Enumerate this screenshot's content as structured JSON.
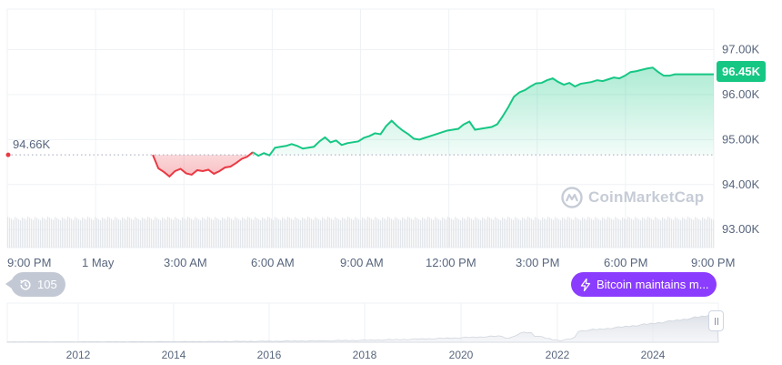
{
  "chart_data": [
    {
      "type": "line",
      "name": "main-price-chart",
      "x_ticks": [
        "9:00 PM",
        "1 May",
        "3:00 AM",
        "6:00 AM",
        "9:00 AM",
        "12:00 PM",
        "3:00 PM",
        "6:00 PM",
        "9:00 PM"
      ],
      "y_ticks": [
        "97.00K",
        "96.00K",
        "95.00K",
        "94.00K",
        "93.00K"
      ],
      "ylim": [
        92.6,
        97.9
      ],
      "open_price": 94.66,
      "open_label": "94.66K",
      "current_price_label": "96.45K",
      "colors": {
        "up": "#16c784",
        "down": "#ea3943",
        "reference": "#a1a7bb"
      },
      "x_hours_from_start": [
        0.0,
        0.2,
        0.4,
        0.6,
        0.8,
        1.0,
        1.2,
        1.4,
        1.6,
        1.8,
        2.0,
        2.2,
        2.4,
        2.6,
        2.8,
        3.0,
        3.2,
        3.4,
        3.6,
        3.8,
        4.0,
        4.2,
        4.4,
        4.6,
        4.8,
        5.0,
        5.2,
        5.4,
        5.6,
        5.8,
        6.0,
        6.2,
        6.4,
        6.6,
        6.8,
        7.0,
        7.2,
        7.4,
        7.6,
        7.8,
        8.0,
        8.2,
        8.4,
        8.6,
        8.8,
        9.0,
        9.2,
        9.4,
        9.6,
        9.8,
        10.0,
        10.2,
        10.4,
        10.6,
        10.8,
        11.0,
        11.2,
        11.4,
        11.6,
        11.8,
        12.0,
        12.2,
        12.4,
        12.6,
        12.8,
        13.0,
        13.2,
        13.4,
        13.6,
        13.8,
        14.0,
        14.2,
        14.4,
        14.6,
        14.8,
        15.0,
        15.2,
        15.4,
        15.6,
        15.8,
        16.0,
        16.2,
        16.4,
        16.6,
        16.8,
        17.0,
        17.2,
        17.4,
        17.6,
        17.8,
        18.0,
        18.2,
        18.4,
        18.6,
        18.8,
        19.0,
        19.2,
        19.4,
        19.6,
        19.8,
        20.0,
        20.2,
        20.4,
        20.6,
        20.8,
        21.0,
        21.2,
        21.4,
        21.6,
        21.8,
        22.0,
        22.2,
        22.4,
        22.6,
        22.8,
        23.0,
        23.2,
        23.4,
        23.6,
        23.8,
        24.0
      ],
      "y_values": [
        94.66,
        94.66,
        94.66,
        94.66,
        94.66,
        94.66,
        94.66,
        94.66,
        94.66,
        94.66,
        94.66,
        94.66,
        94.66,
        94.66,
        94.66,
        94.66,
        94.66,
        94.66,
        94.66,
        94.66,
        94.36,
        94.28,
        94.18,
        94.3,
        94.35,
        94.25,
        94.22,
        94.32,
        94.3,
        94.33,
        94.24,
        94.3,
        94.38,
        94.4,
        94.48,
        94.57,
        94.62,
        94.72,
        94.64,
        94.7,
        94.65,
        94.82,
        94.84,
        94.86,
        94.9,
        94.86,
        94.8,
        94.82,
        94.84,
        94.96,
        95.05,
        94.94,
        94.98,
        94.88,
        94.92,
        94.94,
        94.96,
        95.04,
        95.08,
        95.14,
        95.12,
        95.3,
        95.42,
        95.3,
        95.2,
        95.12,
        95.02,
        95.0,
        95.04,
        95.08,
        95.12,
        95.16,
        95.2,
        95.22,
        95.24,
        95.34,
        95.4,
        95.22,
        95.24,
        95.26,
        95.28,
        95.34,
        95.52,
        95.72,
        95.95,
        96.05,
        96.1,
        96.18,
        96.25,
        96.26,
        96.32,
        96.36,
        96.28,
        96.22,
        96.26,
        96.18,
        96.24,
        96.26,
        96.28,
        96.32,
        96.3,
        96.34,
        96.38,
        96.36,
        96.42,
        96.5,
        96.52,
        96.55,
        96.58,
        96.6,
        96.5,
        96.42,
        96.42,
        96.45,
        96.45,
        96.45,
        96.45,
        96.45,
        96.45,
        96.45,
        96.45
      ]
    },
    {
      "type": "area",
      "name": "navigator-chart",
      "x_ticks": [
        "2012",
        "2014",
        "2016",
        "2018",
        "2020",
        "2022",
        "2024"
      ]
    }
  ],
  "history_pill": {
    "count": "105"
  },
  "news_pill": {
    "text": "Bitcoin maintains m..."
  },
  "watermark": {
    "text": "CoinMarketCap"
  },
  "icons": {
    "history": "history-clock-icon",
    "news": "lightning-icon",
    "logo": "coinmarketcap-logo-icon"
  }
}
